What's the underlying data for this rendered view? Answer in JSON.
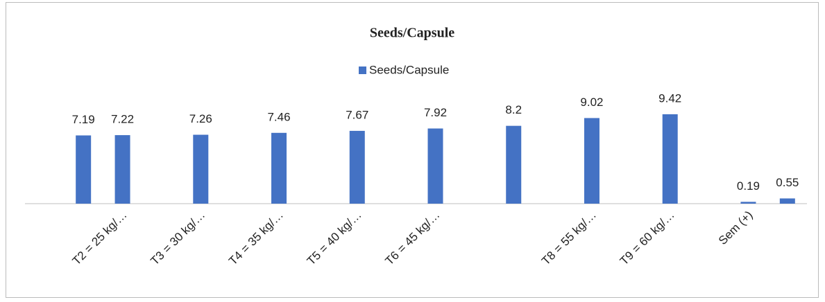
{
  "chart_data": {
    "type": "bar",
    "title": "Seeds/Capsule",
    "categories": [
      null,
      "T2 = 25 kg/…",
      null,
      "T3 = 30 kg/…",
      null,
      "T4 = 35 kg/…",
      null,
      "T5 = 40 kg/…",
      null,
      "T6 = 45 kg/…",
      null,
      null,
      null,
      "T8 = 55 kg/…",
      null,
      "T9 = 60 kg/…",
      null,
      "Sem (+)",
      null
    ],
    "series": [
      {
        "name": "Seeds/Capsule",
        "color": "#4472c4",
        "values": [
          7.19,
          7.22,
          null,
          7.26,
          null,
          7.46,
          null,
          7.67,
          null,
          7.92,
          null,
          8.2,
          null,
          9.02,
          null,
          9.42,
          null,
          0.19,
          0.55
        ]
      }
    ],
    "ylim": [
      0,
      10
    ],
    "grid": false,
    "legend": "top"
  }
}
